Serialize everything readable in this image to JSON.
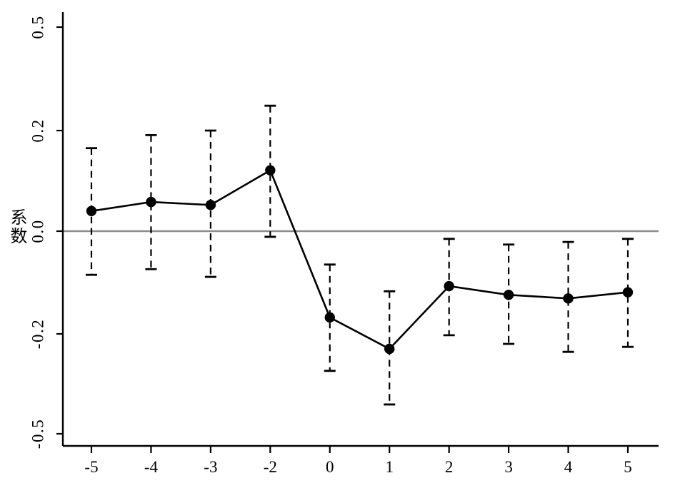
{
  "chart_data": {
    "type": "line",
    "subtype": "event-study-coefficient-plot",
    "title": "",
    "xlabel": "",
    "ylabel": "系数",
    "categories": [
      "-5",
      "-4",
      "-3",
      "-2",
      "0",
      "1",
      "2",
      "3",
      "4",
      "5"
    ],
    "series": [
      {
        "name": "系数",
        "values": [
          0.04,
          0.058,
          0.052,
          0.121,
          -0.168,
          -0.245,
          -0.107,
          -0.124,
          -0.131,
          -0.119
        ],
        "ci_high": [
          0.165,
          0.191,
          0.2,
          0.272,
          -0.065,
          -0.117,
          -0.015,
          -0.026,
          -0.021,
          -0.015
        ],
        "ci_low": [
          -0.085,
          -0.074,
          -0.089,
          -0.011,
          -0.311,
          -0.412,
          -0.204,
          -0.23,
          -0.254,
          -0.239
        ]
      }
    ],
    "y_ticks": [
      0.5,
      0.2,
      0.0,
      -0.2,
      -0.5
    ],
    "y_tick_labels": [
      "0.5",
      "0.2",
      "0.0",
      "-0.2",
      "-0.5"
    ],
    "zero_reference_line": true,
    "grid": false,
    "legend": "none",
    "marker": "circle",
    "error_bar_style": "dashed",
    "colors": {
      "series": "#000000",
      "axis": "#000000",
      "zero_line": "#8c8c8c",
      "background": "#ffffff"
    }
  }
}
